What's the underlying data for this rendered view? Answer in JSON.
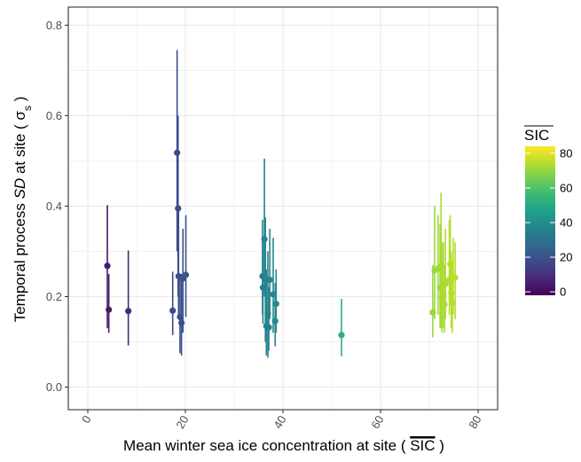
{
  "chart_data": {
    "type": "scatter",
    "title": "",
    "xlabel": {
      "before": "Mean winter sea ice concentration at site ( ",
      "symbol": "SIC",
      "after": " )"
    },
    "ylabel": {
      "before": "Temporal process ",
      "italic": "SD",
      "middle": " at site ( σ",
      "sub": "s",
      "after": " )"
    },
    "xlim": [
      -4,
      84
    ],
    "ylim": [
      -0.05,
      0.84
    ],
    "xticks": [
      0,
      20,
      40,
      60,
      80
    ],
    "xtick_labels": [
      "0",
      "20",
      "40",
      "60",
      "80"
    ],
    "yticks": [
      0.0,
      0.2,
      0.4,
      0.6,
      0.8
    ],
    "ytick_labels": [
      "0.0",
      "0.2",
      "0.4",
      "0.6",
      "0.8"
    ],
    "grid": true,
    "legend": {
      "title": "SIC",
      "placement": "right",
      "colorbar_range": [
        -2,
        84
      ],
      "ticks": [
        0,
        20,
        40,
        60,
        80
      ],
      "tick_labels": [
        "0",
        "20",
        "40",
        "60",
        "80"
      ],
      "colormap": "viridis"
    },
    "points": [
      {
        "x": 4.0,
        "y": 0.268,
        "lo": 0.13,
        "hi": 0.402
      },
      {
        "x": 4.3,
        "y": 0.171,
        "lo": 0.12,
        "hi": 0.25
      },
      {
        "x": 8.3,
        "y": 0.168,
        "lo": 0.092,
        "hi": 0.302
      },
      {
        "x": 17.4,
        "y": 0.169,
        "lo": 0.115,
        "hi": 0.255
      },
      {
        "x": 18.3,
        "y": 0.518,
        "lo": 0.3,
        "hi": 0.745
      },
      {
        "x": 18.5,
        "y": 0.395,
        "lo": 0.2,
        "hi": 0.6
      },
      {
        "x": 18.6,
        "y": 0.245,
        "lo": 0.16,
        "hi": 0.4
      },
      {
        "x": 18.9,
        "y": 0.155,
        "lo": 0.075,
        "hi": 0.245
      },
      {
        "x": 19.2,
        "y": 0.142,
        "lo": 0.07,
        "hi": 0.25
      },
      {
        "x": 19.5,
        "y": 0.24,
        "lo": 0.12,
        "hi": 0.35
      },
      {
        "x": 20.1,
        "y": 0.248,
        "lo": 0.155,
        "hi": 0.38
      },
      {
        "x": 35.8,
        "y": 0.245,
        "lo": 0.16,
        "hi": 0.37
      },
      {
        "x": 35.9,
        "y": 0.22,
        "lo": 0.14,
        "hi": 0.33
      },
      {
        "x": 36.2,
        "y": 0.327,
        "lo": 0.2,
        "hi": 0.505
      },
      {
        "x": 36.4,
        "y": 0.24,
        "lo": 0.1,
        "hi": 0.375
      },
      {
        "x": 36.6,
        "y": 0.135,
        "lo": 0.07,
        "hi": 0.26
      },
      {
        "x": 36.9,
        "y": 0.163,
        "lo": 0.065,
        "hi": 0.3
      },
      {
        "x": 37.1,
        "y": 0.132,
        "lo": 0.08,
        "hi": 0.22
      },
      {
        "x": 37.3,
        "y": 0.237,
        "lo": 0.15,
        "hi": 0.35
      },
      {
        "x": 38.0,
        "y": 0.205,
        "lo": 0.12,
        "hi": 0.33
      },
      {
        "x": 38.4,
        "y": 0.146,
        "lo": 0.09,
        "hi": 0.23
      },
      {
        "x": 38.6,
        "y": 0.184,
        "lo": 0.12,
        "hi": 0.26
      },
      {
        "x": 52.0,
        "y": 0.115,
        "lo": 0.068,
        "hi": 0.195
      },
      {
        "x": 70.7,
        "y": 0.165,
        "lo": 0.11,
        "hi": 0.27
      },
      {
        "x": 71.1,
        "y": 0.258,
        "lo": 0.15,
        "hi": 0.4
      },
      {
        "x": 71.8,
        "y": 0.262,
        "lo": 0.16,
        "hi": 0.38
      },
      {
        "x": 72.2,
        "y": 0.22,
        "lo": 0.13,
        "hi": 0.36
      },
      {
        "x": 72.4,
        "y": 0.268,
        "lo": 0.13,
        "hi": 0.43
      },
      {
        "x": 72.6,
        "y": 0.198,
        "lo": 0.12,
        "hi": 0.32
      },
      {
        "x": 72.9,
        "y": 0.205,
        "lo": 0.13,
        "hi": 0.32
      },
      {
        "x": 73.1,
        "y": 0.183,
        "lo": 0.12,
        "hi": 0.27
      },
      {
        "x": 73.3,
        "y": 0.228,
        "lo": 0.15,
        "hi": 0.35
      },
      {
        "x": 74.1,
        "y": 0.237,
        "lo": 0.16,
        "hi": 0.37
      },
      {
        "x": 74.3,
        "y": 0.272,
        "lo": 0.18,
        "hi": 0.38
      },
      {
        "x": 74.5,
        "y": 0.208,
        "lo": 0.13,
        "hi": 0.3
      },
      {
        "x": 74.7,
        "y": 0.186,
        "lo": 0.12,
        "hi": 0.28
      },
      {
        "x": 74.9,
        "y": 0.243,
        "lo": 0.16,
        "hi": 0.33
      },
      {
        "x": 75.3,
        "y": 0.242,
        "lo": 0.15,
        "hi": 0.32
      }
    ]
  }
}
